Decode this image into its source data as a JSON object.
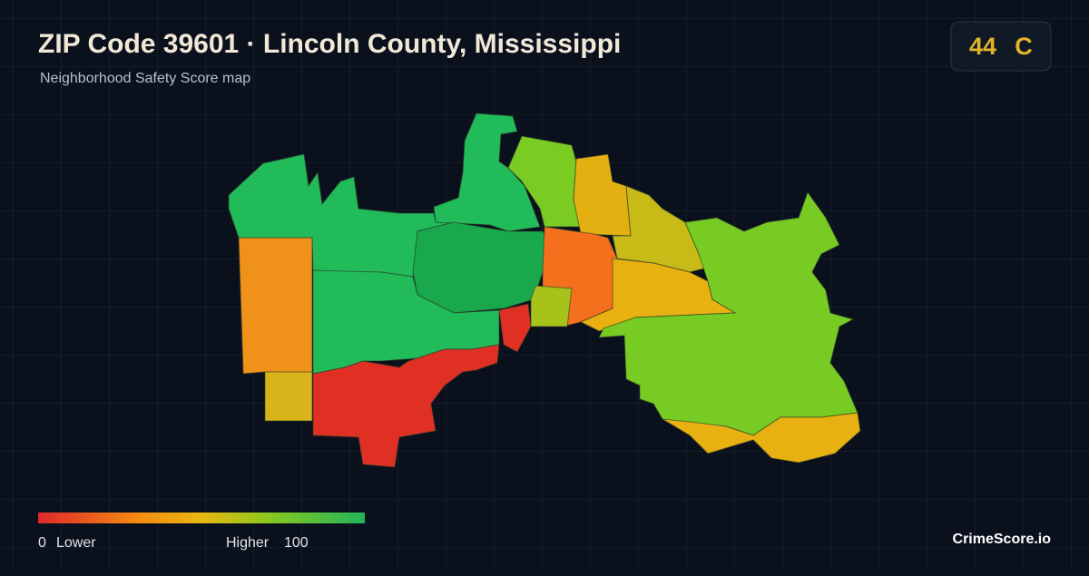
{
  "header": {
    "title": "ZIP Code 39601 · Lincoln County, Mississippi",
    "subtitle": "Neighborhood Safety Score map"
  },
  "badge": {
    "score": "44",
    "grade": "C"
  },
  "legend": {
    "min": "0",
    "min_label": "Lower",
    "max_label": "Higher",
    "max": "100"
  },
  "brand": "CrimeScore.io"
}
